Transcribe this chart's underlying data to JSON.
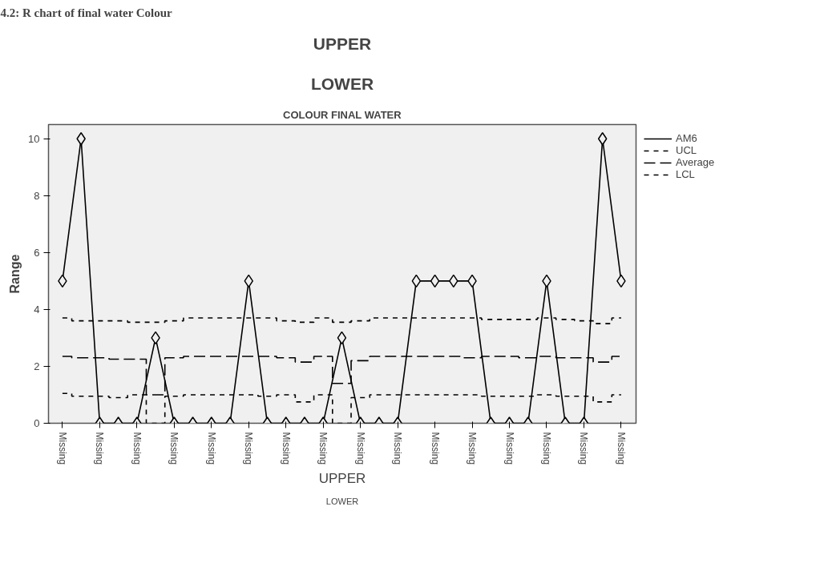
{
  "chart_data": {
    "type": "line",
    "title": "COLOUR FINAL WATER",
    "xlabel": "UPPER",
    "ylabel": "Range",
    "annotations": [
      "4.2: R chart of final water Colour",
      "UPPER",
      "LOWER",
      "LOWER"
    ],
    "categories": [
      "Missing",
      null,
      "Missing",
      null,
      "Missing",
      null,
      "Missing",
      null,
      "Missing",
      null,
      "Missing",
      null,
      "Missing",
      null,
      "Missing",
      null,
      "Missing",
      null,
      "Missing",
      null,
      "Missing",
      null,
      "Missing",
      null,
      "Missing",
      null,
      "Missing",
      null,
      "Missing",
      null,
      "Missing"
    ],
    "series": [
      {
        "name": "AM6",
        "color": "#000000",
        "marker": "diamond",
        "line_style": "solid",
        "values": [
          5,
          10,
          0,
          0,
          0,
          3,
          0,
          0,
          0,
          0,
          5,
          0,
          0,
          0,
          0,
          3,
          0,
          0,
          0,
          5,
          5,
          5,
          5,
          0,
          0,
          0,
          5,
          0,
          0,
          10,
          5
        ]
      },
      {
        "name": "UCL",
        "type": "step",
        "color": "#000000",
        "marker": "none",
        "line_style": "dashed",
        "values": [
          3.7,
          3.6,
          3.6,
          3.6,
          3.55,
          3.55,
          3.6,
          3.7,
          3.7,
          3.7,
          3.7,
          3.7,
          3.6,
          3.55,
          3.7,
          3.55,
          3.6,
          3.7,
          3.7,
          3.7,
          3.7,
          3.7,
          3.7,
          3.65,
          3.65,
          3.65,
          3.7,
          3.65,
          3.6,
          3.5,
          3.7
        ]
      },
      {
        "name": "Average",
        "type": "step",
        "color": "#000000",
        "marker": "none",
        "line_style": "longdash",
        "values": [
          2.35,
          2.3,
          2.3,
          2.25,
          2.25,
          1.0,
          2.3,
          2.35,
          2.35,
          2.35,
          2.35,
          2.35,
          2.3,
          2.15,
          2.35,
          1.4,
          2.2,
          2.35,
          2.35,
          2.35,
          2.35,
          2.35,
          2.3,
          2.35,
          2.35,
          2.3,
          2.35,
          2.3,
          2.3,
          2.15,
          2.35
        ]
      },
      {
        "name": "LCL",
        "type": "step",
        "color": "#000000",
        "marker": "none",
        "line_style": "dashed",
        "values": [
          1.05,
          0.95,
          0.95,
          0.9,
          1.0,
          0,
          0.95,
          1.0,
          1.0,
          1.0,
          1.0,
          0.95,
          1.0,
          0.75,
          1.0,
          0,
          0.9,
          1.0,
          1.0,
          1.0,
          1.0,
          1.0,
          1.0,
          0.95,
          0.95,
          0.95,
          1.0,
          0.95,
          0.95,
          0.75,
          1.0
        ]
      }
    ],
    "ylim": [
      0,
      10.5
    ],
    "yticks": [
      0,
      2,
      4,
      6,
      8,
      10
    ],
    "legend": "right"
  }
}
